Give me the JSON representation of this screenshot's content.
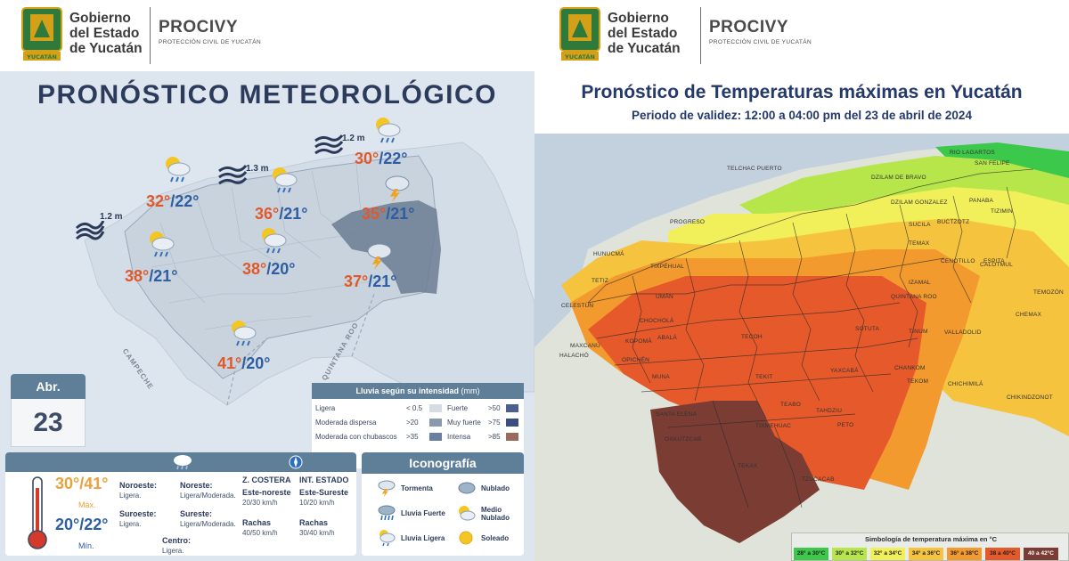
{
  "header": {
    "gov_line1": "Gobierno",
    "gov_line2": "del Estado",
    "gov_line3": "de Yucatán",
    "seal_text": "YUCATÁN",
    "agency": "PROCIVY",
    "agency_sub": "PROTECCIÓN CIVIL DE YUCATÁN"
  },
  "left": {
    "title": "PRONÓSTICO METEOROLÓGICO",
    "waves": [
      "1.2 m",
      "1.3 m",
      "1.2 m"
    ],
    "forecasts": [
      {
        "icon": "partly-cloudy-light-rain-icon",
        "hi": "30°",
        "lo": "/22°"
      },
      {
        "icon": "partly-cloudy-light-rain-icon",
        "hi": "32°",
        "lo": "/22°"
      },
      {
        "icon": "partly-cloudy-light-rain-icon",
        "hi": "36°",
        "lo": "/21°"
      },
      {
        "icon": "storm-icon",
        "hi": "35°",
        "lo": "/21°"
      },
      {
        "icon": "partly-cloudy-light-rain-icon",
        "hi": "38°",
        "lo": "/21°"
      },
      {
        "icon": "partly-cloudy-light-rain-icon",
        "hi": "38°",
        "lo": "/20°"
      },
      {
        "icon": "storm-icon",
        "hi": "37°",
        "lo": "/21°"
      },
      {
        "icon": "partly-cloudy-light-rain-icon",
        "hi": "41°",
        "lo": "/20°"
      }
    ],
    "state_labels": {
      "campeche": "CAMPECHE",
      "qroo": "QUINTANA ROO"
    },
    "date": {
      "month": "Abr.",
      "day": "23"
    },
    "rain_legend": {
      "title": "Lluvia según su intensidad",
      "unit": "(mm)",
      "rows": [
        {
          "label": "Ligera",
          "range": "< 0.5",
          "label2": "Fuerte",
          "range2": ">50"
        },
        {
          "label": "Moderada dispersa",
          "range": ">20",
          "label2": "Muy fuerte",
          "range2": ">75"
        },
        {
          "label": "Moderada con chubascos",
          "range": ">35",
          "label2": "Intensa",
          "range2": ">85"
        }
      ]
    },
    "summary": {
      "max": "30°/41°",
      "max_label": "Máx.",
      "min": "20°/22°",
      "min_label": "Mín.",
      "winds": [
        {
          "dir": "Noroeste:",
          "val": "Ligera."
        },
        {
          "dir": "Noreste:",
          "val": "Ligera/Moderada."
        },
        {
          "dir": "Suroeste:",
          "val": "Ligera."
        },
        {
          "dir": "Sureste:",
          "val": "Ligera/Moderada."
        },
        {
          "dir": "Centro:",
          "val": "Ligera."
        }
      ],
      "coast_head": "Z. COSTERA",
      "coast_wind": "Este-noreste",
      "coast_speed": "20/30 km/h",
      "coast_gust_label": "Rachas",
      "coast_gust": "40/50 km/h",
      "state_head": "INT. ESTADO",
      "state_wind": "Este-Sureste",
      "state_speed": "10/20 km/h",
      "state_gust_label": "Rachas",
      "state_gust": "30/40 km/h"
    },
    "iconography": {
      "title": "Iconografía",
      "items": [
        {
          "label": "Tormenta",
          "icon": "storm-icon"
        },
        {
          "label": "Nublado",
          "icon": "cloudy-icon"
        },
        {
          "label": "Lluvia Fuerte",
          "icon": "heavy-rain-icon"
        },
        {
          "label": "Medio Nublado",
          "icon": "partly-cloudy-icon"
        },
        {
          "label": "Lluvia Ligera",
          "icon": "light-rain-icon"
        },
        {
          "label": "Soleado",
          "icon": "sunny-icon"
        }
      ]
    }
  },
  "right": {
    "title": "Pronóstico de Temperaturas máximas en Yucatán",
    "subtitle": "Periodo de validez: 12:00 a 04:00 pm del 23 de abril de 2024",
    "municipalities": [
      "RIO LAGARTOS",
      "SAN FELIPE",
      "DZILAM DE BRAVO",
      "TELCHAC PUERTO",
      "DZILAM GONZALEZ",
      "PANABA",
      "TIZIMIN",
      "PROGRESO",
      "BUCTZOTZ",
      "SUCILA",
      "HUNUCMÁ",
      "CENOTILLO",
      "ESPITA",
      "CALOTMUL",
      "TEMAX",
      "TIXPÉHUAL",
      "IZAMAL",
      "TEMOZÓN",
      "CHEMAX",
      "TETIZ",
      "CELESTÚN",
      "UMÁN",
      "QUINTANA ROO",
      "TINUM",
      "VALLADOLID",
      "CHOCHOLÁ",
      "ABALÁ",
      "SOTUTA",
      "KOPOMÁ",
      "TECOH",
      "MAXCANÚ",
      "OPICHÉN",
      "HALACHÓ",
      "MUNA",
      "TEKIT",
      "YAXCABÁ",
      "CHANKOM",
      "TEKOM",
      "CHICHIMILÁ",
      "CHIKINDZONOT",
      "TAHDZIU",
      "TEABO",
      "TIXMEHUAC",
      "PETO",
      "SANTA ELENA",
      "OXKUTZCAB",
      "TEKAX",
      "TZUCACAB"
    ],
    "legend_title": "Simbología de temperatura máxima en °C",
    "legend": [
      {
        "range": "28° a 30°C",
        "color": "#3cc84a"
      },
      {
        "range": "30° a 32°C",
        "color": "#b6e64a"
      },
      {
        "range": "32° a 34°C",
        "color": "#f1ef5a"
      },
      {
        "range": "34° a 36°C",
        "color": "#f6c33f"
      },
      {
        "range": "36° a 38°C",
        "color": "#f29a2e"
      },
      {
        "range": "38 a 40°C",
        "color": "#e5592a"
      },
      {
        "range": "40 a 42°C",
        "color": "#7a3c33"
      }
    ]
  }
}
